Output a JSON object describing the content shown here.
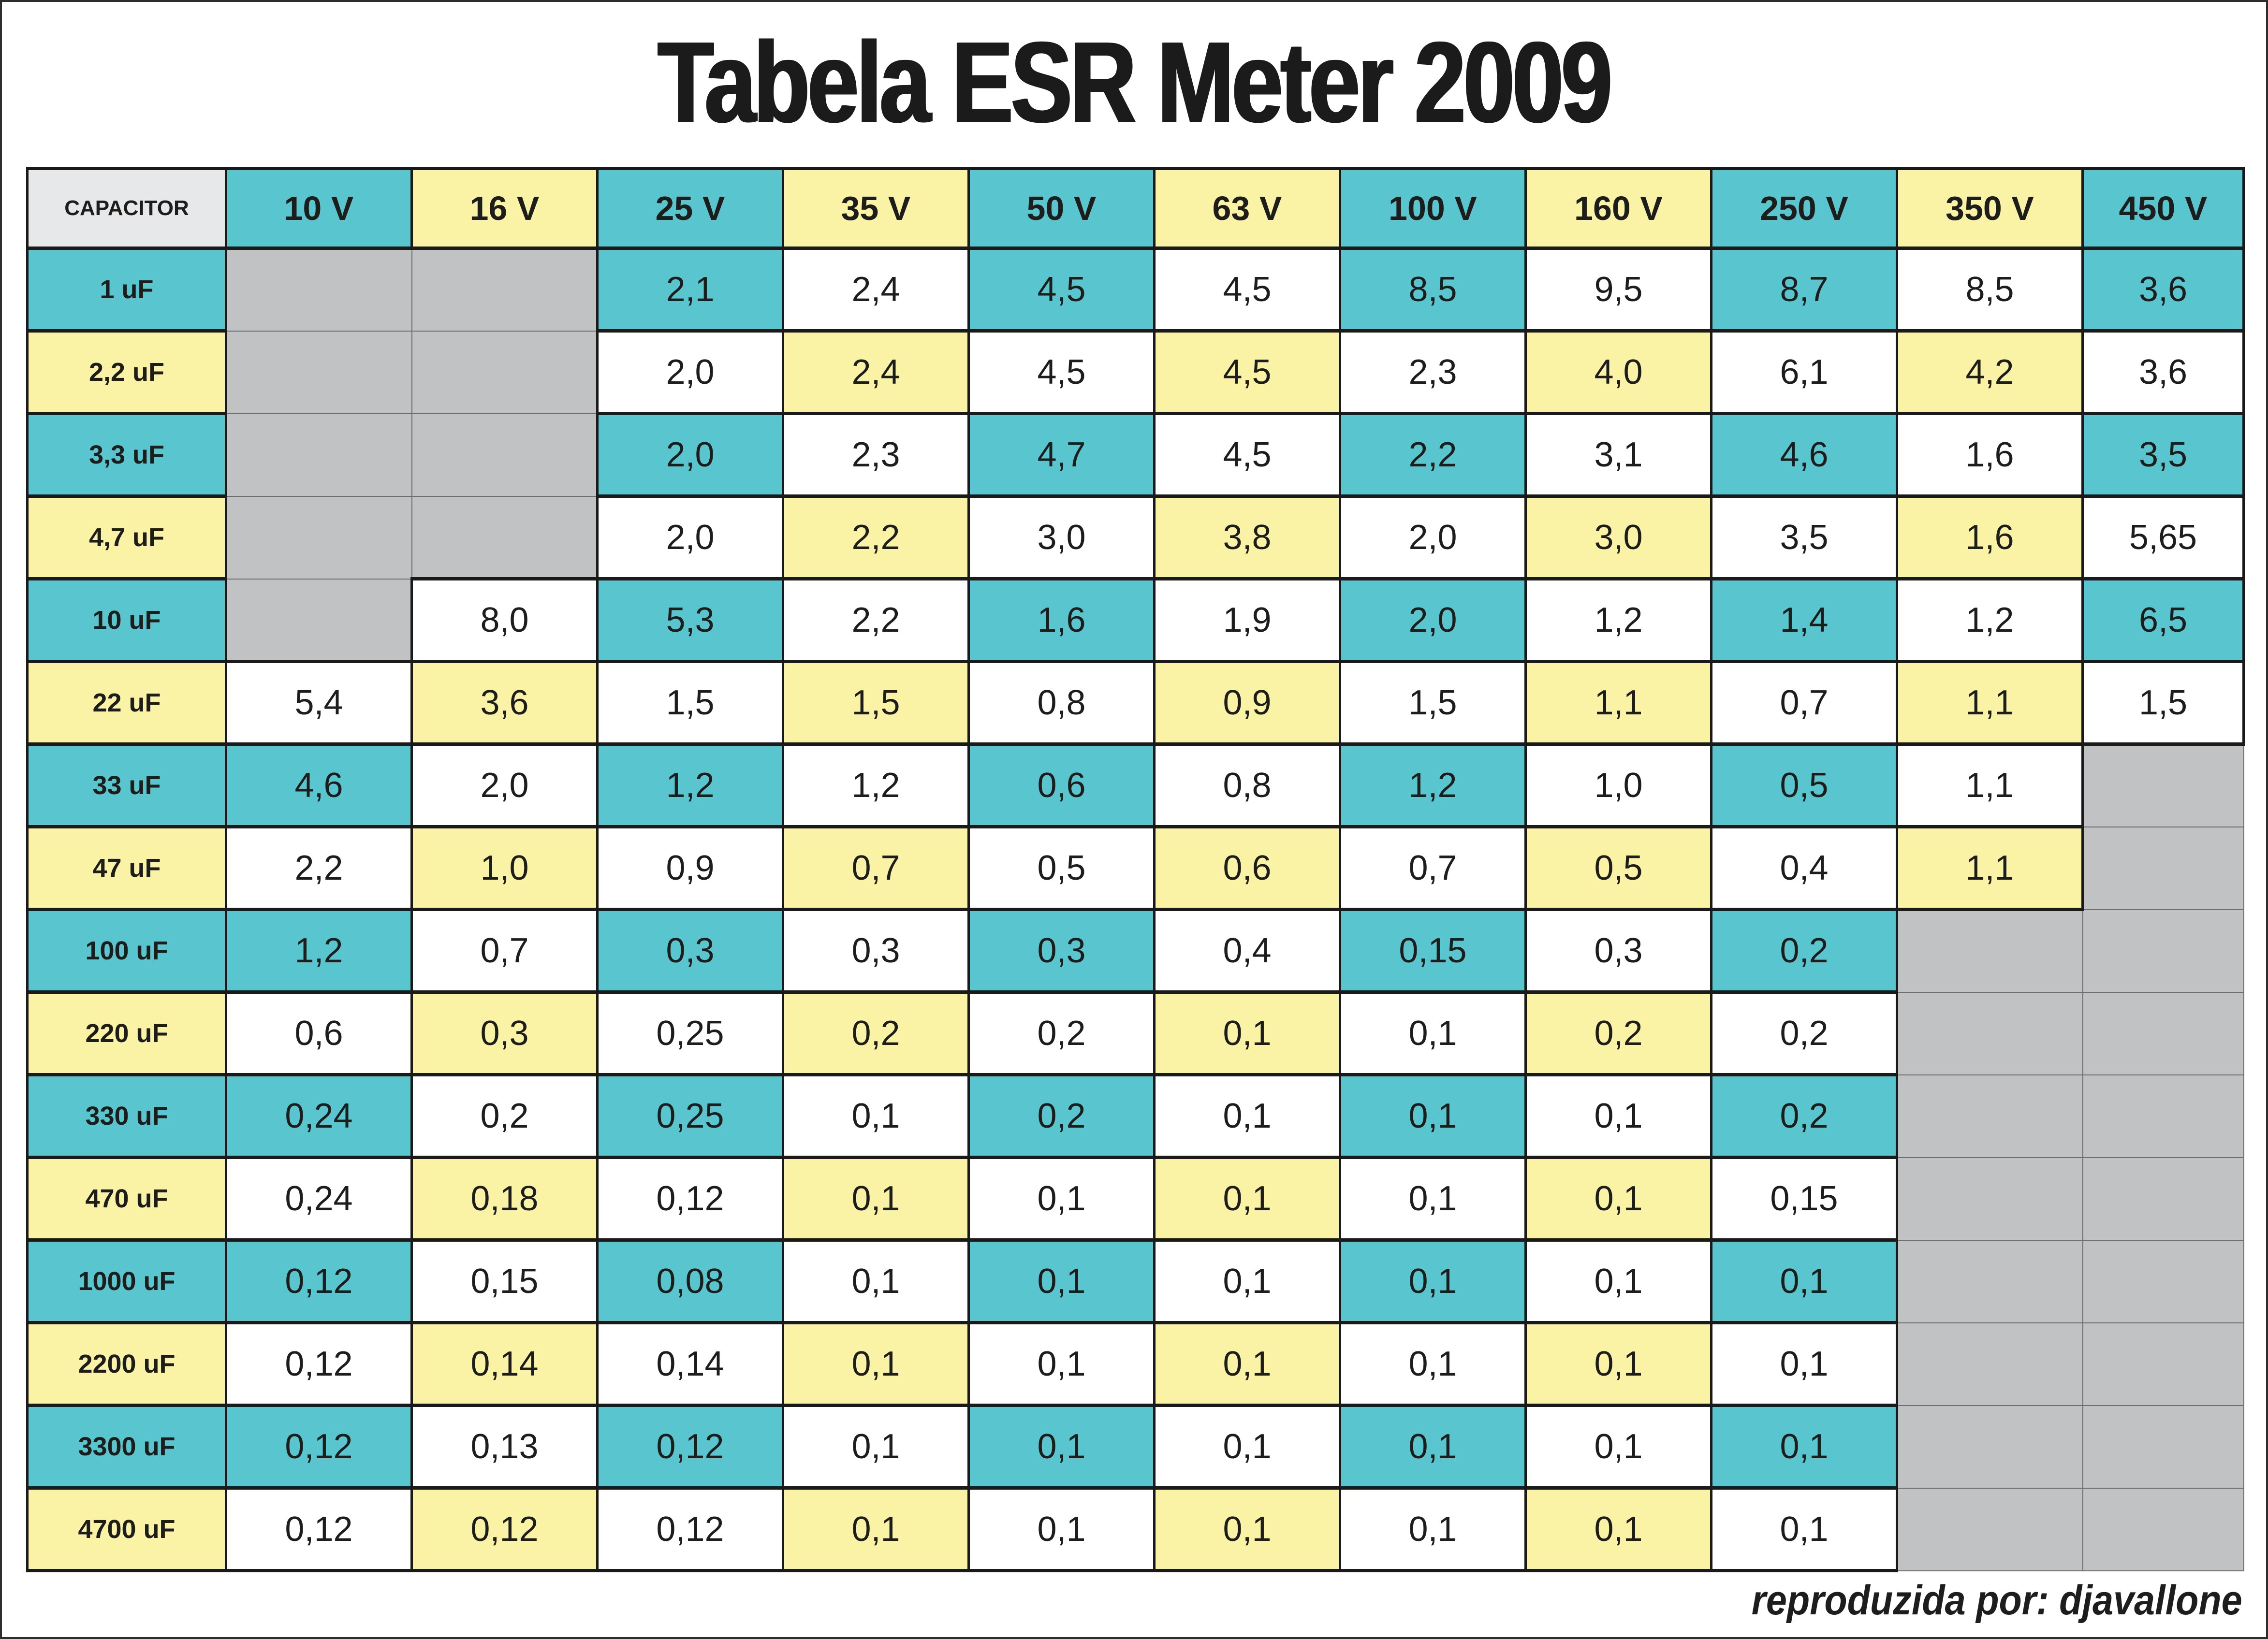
{
  "title": "Tabela ESR Meter 2009",
  "footer": {
    "credit": "reproduzida por: djavallone"
  },
  "colors": {
    "teal": "#59C5CF",
    "yellow": "#FAF2A4",
    "empty_gray": "#C0C2C4",
    "header_gray": "#E7E8EA",
    "border": "#1A1A1A",
    "empty_border": "#6E6E6E",
    "text": "#1D1D1B"
  },
  "chart_data": {
    "type": "table",
    "title": "Tabela ESR Meter 2009",
    "corner_header": "CAPACITOR",
    "columns": [
      "10 V",
      "16 V",
      "25 V",
      "35 V",
      "50 V",
      "63 V",
      "100 V",
      "160 V",
      "250 V",
      "350 V",
      "450 V"
    ],
    "rows": [
      {
        "label": "1 uF",
        "values": [
          null,
          null,
          "2,1",
          "2,4",
          "4,5",
          "4,5",
          "8,5",
          "9,5",
          "8,7",
          "8,5",
          "3,6"
        ]
      },
      {
        "label": "2,2 uF",
        "values": [
          null,
          null,
          "2,0",
          "2,4",
          "4,5",
          "4,5",
          "2,3",
          "4,0",
          "6,1",
          "4,2",
          "3,6"
        ]
      },
      {
        "label": "3,3 uF",
        "values": [
          null,
          null,
          "2,0",
          "2,3",
          "4,7",
          "4,5",
          "2,2",
          "3,1",
          "4,6",
          "1,6",
          "3,5"
        ]
      },
      {
        "label": "4,7 uF",
        "values": [
          null,
          null,
          "2,0",
          "2,2",
          "3,0",
          "3,8",
          "2,0",
          "3,0",
          "3,5",
          "1,6",
          "5,65"
        ]
      },
      {
        "label": "10 uF",
        "values": [
          null,
          "8,0",
          "5,3",
          "2,2",
          "1,6",
          "1,9",
          "2,0",
          "1,2",
          "1,4",
          "1,2",
          "6,5"
        ]
      },
      {
        "label": "22 uF",
        "values": [
          "5,4",
          "3,6",
          "1,5",
          "1,5",
          "0,8",
          "0,9",
          "1,5",
          "1,1",
          "0,7",
          "1,1",
          "1,5"
        ]
      },
      {
        "label": "33 uF",
        "values": [
          "4,6",
          "2,0",
          "1,2",
          "1,2",
          "0,6",
          "0,8",
          "1,2",
          "1,0",
          "0,5",
          "1,1",
          null
        ]
      },
      {
        "label": "47 uF",
        "values": [
          "2,2",
          "1,0",
          "0,9",
          "0,7",
          "0,5",
          "0,6",
          "0,7",
          "0,5",
          "0,4",
          "1,1",
          null
        ]
      },
      {
        "label": "100 uF",
        "values": [
          "1,2",
          "0,7",
          "0,3",
          "0,3",
          "0,3",
          "0,4",
          "0,15",
          "0,3",
          "0,2",
          null,
          null
        ]
      },
      {
        "label": "220 uF",
        "values": [
          "0,6",
          "0,3",
          "0,25",
          "0,2",
          "0,2",
          "0,1",
          "0,1",
          "0,2",
          "0,2",
          null,
          null
        ]
      },
      {
        "label": "330 uF",
        "values": [
          "0,24",
          "0,2",
          "0,25",
          "0,1",
          "0,2",
          "0,1",
          "0,1",
          "0,1",
          "0,2",
          null,
          null
        ]
      },
      {
        "label": "470 uF",
        "values": [
          "0,24",
          "0,18",
          "0,12",
          "0,1",
          "0,1",
          "0,1",
          "0,1",
          "0,1",
          "0,15",
          null,
          null
        ]
      },
      {
        "label": "1000 uF",
        "values": [
          "0,12",
          "0,15",
          "0,08",
          "0,1",
          "0,1",
          "0,1",
          "0,1",
          "0,1",
          "0,1",
          null,
          null
        ]
      },
      {
        "label": "2200 uF",
        "values": [
          "0,12",
          "0,14",
          "0,14",
          "0,1",
          "0,1",
          "0,1",
          "0,1",
          "0,1",
          "0,1",
          null,
          null
        ]
      },
      {
        "label": "3300 uF",
        "values": [
          "0,12",
          "0,13",
          "0,12",
          "0,1",
          "0,1",
          "0,1",
          "0,1",
          "0,1",
          "0,1",
          null,
          null
        ]
      },
      {
        "label": "4700 uF",
        "values": [
          "0,12",
          "0,12",
          "0,12",
          "0,1",
          "0,1",
          "0,1",
          "0,1",
          "0,1",
          "0,1",
          null,
          null
        ]
      }
    ]
  }
}
